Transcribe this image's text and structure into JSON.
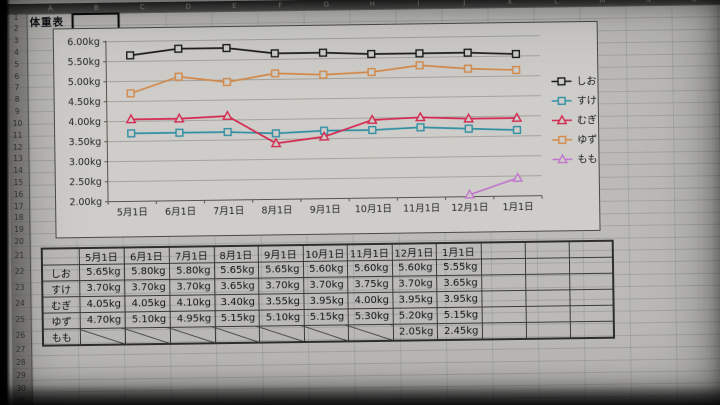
{
  "app": {
    "title_cell_text": "体重表"
  },
  "spreadsheet": {
    "column_letters": [
      "A",
      "B",
      "C",
      "D",
      "E",
      "F",
      "G",
      "H",
      "I",
      "J",
      "K",
      "L",
      "M",
      "N",
      "O"
    ],
    "row_numbers": [
      "1",
      "2",
      "3",
      "4",
      "5",
      "6",
      "7",
      "8",
      "9",
      "10",
      "11",
      "12",
      "13",
      "14",
      "15",
      "16",
      "17",
      "18",
      "19",
      "20",
      "21",
      "22",
      "23",
      "24",
      "25",
      "26",
      "27",
      "28",
      "29",
      "30",
      "31"
    ]
  },
  "chart_data": {
    "type": "line",
    "title": "",
    "xlabel": "",
    "ylabel": "",
    "categories": [
      "5月1日",
      "6月1日",
      "7月1日",
      "8月1日",
      "9月1日",
      "10月1日",
      "11月1日",
      "12月1日",
      "1月1日"
    ],
    "ylim": [
      2.0,
      6.0
    ],
    "ytick_step": 0.5,
    "ytick_labels": [
      "6.00kg",
      "5.50kg",
      "5.00kg",
      "4.50kg",
      "4.00kg",
      "3.50kg",
      "3.00kg",
      "2.50kg",
      "2.00kg"
    ],
    "grid": true,
    "legend_position": "right",
    "series": [
      {
        "name": "しお",
        "color": "#1c1c1c",
        "marker": "square",
        "values": [
          5.65,
          5.8,
          5.8,
          5.65,
          5.65,
          5.6,
          5.6,
          5.6,
          5.55
        ]
      },
      {
        "name": "すけ",
        "color": "#318fa3",
        "marker": "square",
        "values": [
          3.7,
          3.7,
          3.7,
          3.65,
          3.7,
          3.7,
          3.75,
          3.7,
          3.65
        ]
      },
      {
        "name": "むぎ",
        "color": "#d42850",
        "marker": "triangle",
        "values": [
          4.05,
          4.05,
          4.1,
          3.4,
          3.55,
          3.95,
          4.0,
          3.95,
          3.95
        ]
      },
      {
        "name": "ゆず",
        "color": "#d48a4a",
        "marker": "square",
        "values": [
          4.7,
          5.1,
          4.95,
          5.15,
          5.1,
          5.15,
          5.3,
          5.2,
          5.15
        ]
      },
      {
        "name": "もも",
        "color": "#c175cd",
        "marker": "triangle",
        "values": [
          null,
          null,
          null,
          null,
          null,
          null,
          null,
          2.05,
          2.45
        ]
      }
    ]
  },
  "table": {
    "corner": "",
    "columns": [
      "5月1日",
      "6月1日",
      "7月1日",
      "8月1日",
      "9月1日",
      "10月1日",
      "11月1日",
      "12月1日",
      "1月1日"
    ],
    "trailing_empty_columns": 3,
    "rows": [
      {
        "label": "しお",
        "values": [
          "5.65kg",
          "5.80kg",
          "5.80kg",
          "5.65kg",
          "5.65kg",
          "5.60kg",
          "5.60kg",
          "5.60kg",
          "5.55kg"
        ]
      },
      {
        "label": "すけ",
        "values": [
          "3.70kg",
          "3.70kg",
          "3.70kg",
          "3.65kg",
          "3.70kg",
          "3.70kg",
          "3.75kg",
          "3.70kg",
          "3.65kg"
        ]
      },
      {
        "label": "むぎ",
        "values": [
          "4.05kg",
          "4.05kg",
          "4.10kg",
          "3.40kg",
          "3.55kg",
          "3.95kg",
          "4.00kg",
          "3.95kg",
          "3.95kg"
        ]
      },
      {
        "label": "ゆず",
        "values": [
          "4.70kg",
          "5.10kg",
          "4.95kg",
          "5.15kg",
          "5.10kg",
          "5.15kg",
          "5.30kg",
          "5.20kg",
          "5.15kg"
        ]
      },
      {
        "label": "もも",
        "values": [
          null,
          null,
          null,
          null,
          null,
          null,
          null,
          "2.05kg",
          "2.45kg"
        ]
      }
    ]
  }
}
